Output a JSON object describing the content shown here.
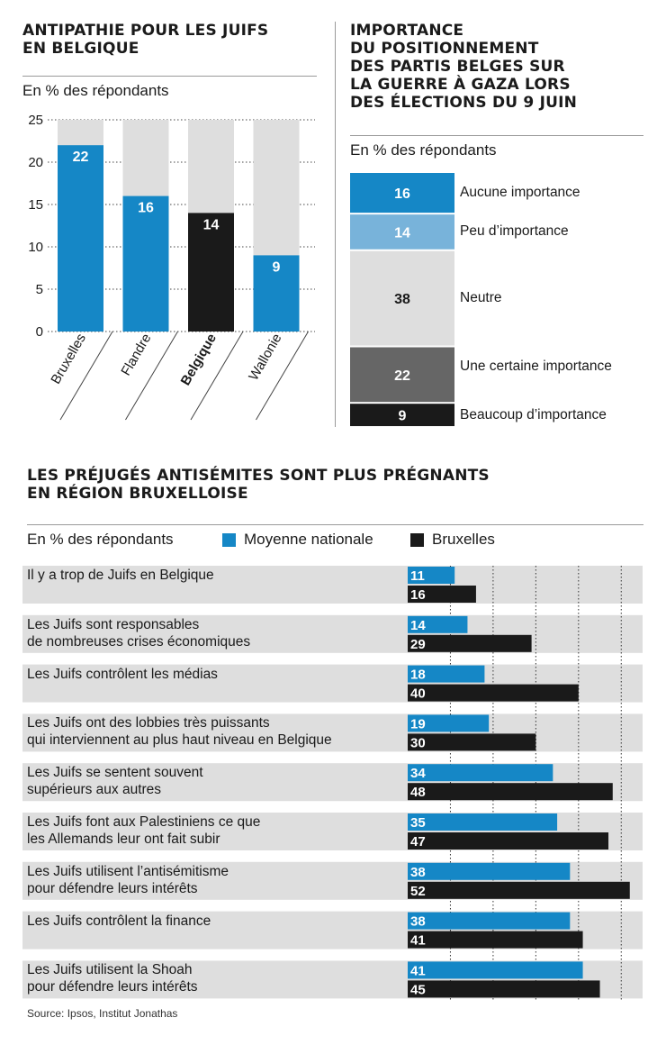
{
  "chart1": {
    "title_lines": [
      "ANTIPATHIE POUR LES JUIFS",
      "EN BELGIQUE"
    ],
    "subtitle": "En % des répondants",
    "colors": {
      "main": "#1587c6",
      "highlight": "#1a1a1a",
      "track": "#dedede"
    }
  },
  "chart2": {
    "title_lines": [
      "IMPORTANCE",
      "DU POSITIONNEMENT",
      "DES PARTIS BELGES SUR",
      "LA GUERRE À GAZA LORS",
      "DES ÉLECTIONS DU 9 JUIN"
    ],
    "subtitle": "En % des répondants"
  },
  "chart3": {
    "title_lines": [
      "LES PRÉJUGÉS ANTISÉMITES SONT PLUS PRÉGNANTS",
      "EN RÉGION BRUXELLOISE"
    ],
    "subtitle": "En % des répondants",
    "legend": {
      "national": "Moyenne nationale",
      "brussels": "Bruxelles"
    },
    "colors": {
      "national": "#1587c6",
      "brussels": "#1a1a1a",
      "row_bg": "#dedede"
    }
  },
  "source": "Source: Ipsos, Institut Jonathas",
  "chart_data": [
    {
      "type": "bar",
      "categories": [
        "Bruxelles",
        "Flandre",
        "Belgique",
        "Wallonie"
      ],
      "values": [
        22,
        16,
        14,
        9
      ],
      "highlight": "Belgique",
      "ylim": [
        0,
        25
      ],
      "yticks": [
        0,
        5,
        10,
        15,
        20,
        25
      ],
      "title": "ANTIPATHIE POUR LES JUIFS EN BELGIQUE",
      "ylabel": "En % des répondants",
      "grid": true
    },
    {
      "type": "bar",
      "stacked": true,
      "title": "IMPORTANCE DU POSITIONNEMENT DES PARTIS BELGES SUR LA GUERRE À GAZA LORS DES ÉLECTIONS DU 9 JUIN",
      "ylabel": "En % des répondants",
      "series": [
        {
          "name": "Aucune importance",
          "value": 16,
          "color": "#1587c6",
          "text_color": "#ffffff"
        },
        {
          "name": "Peu d’importance",
          "value": 14,
          "color": "#78b3da",
          "text_color": "#ffffff"
        },
        {
          "name": "Neutre",
          "value": 38,
          "color": "#dedede",
          "text_color": "#1a1a1a"
        },
        {
          "name": "Une certaine importance",
          "value": 22,
          "color": "#666666",
          "text_color": "#ffffff"
        },
        {
          "name": "Beaucoup d’importance",
          "value": 9,
          "color": "#1a1a1a",
          "text_color": "#ffffff"
        }
      ]
    },
    {
      "type": "bar",
      "orientation": "horizontal",
      "title": "LES PRÉJUGÉS ANTISÉMITES SONT PLUS PRÉGNANTS EN RÉGION BRUXELLOISE",
      "ylabel": "En % des répondants",
      "xlim": [
        0,
        55
      ],
      "grid": true,
      "categories": [
        [
          "Il y a trop de Juifs en Belgique"
        ],
        [
          "Les Juifs sont responsables",
          "de nombreuses crises économiques"
        ],
        [
          "Les Juifs contrôlent les médias"
        ],
        [
          "Les Juifs ont des lobbies très puissants",
          "qui interviennent au plus haut niveau en Belgique"
        ],
        [
          "Les Juifs se sentent souvent",
          "supérieurs aux autres"
        ],
        [
          "Les Juifs font aux Palestiniens ce que",
          "les Allemands leur ont fait subir"
        ],
        [
          "Les Juifs utilisent l’antisémitisme",
          "pour défendre leurs intérêts"
        ],
        [
          "Les Juifs contrôlent la finance"
        ],
        [
          "Les Juifs utilisent la Shoah",
          "pour défendre leurs intérêts"
        ]
      ],
      "series": [
        {
          "name": "Moyenne nationale",
          "values": [
            11,
            14,
            18,
            19,
            34,
            35,
            38,
            38,
            41
          ]
        },
        {
          "name": "Bruxelles",
          "values": [
            16,
            29,
            40,
            30,
            48,
            47,
            52,
            41,
            45
          ]
        }
      ]
    }
  ]
}
